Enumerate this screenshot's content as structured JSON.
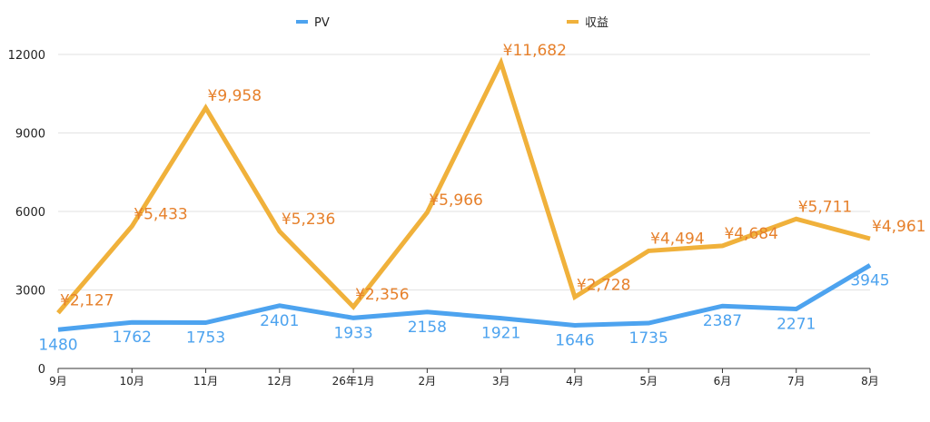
{
  "chart_data": {
    "type": "line",
    "title": "",
    "xlabel": "",
    "ylabel": "",
    "ylim": [
      0,
      12000
    ],
    "yticks": [
      0,
      3000,
      6000,
      9000,
      12000
    ],
    "categories": [
      "9月",
      "10月",
      "11月",
      "12月",
      "26年1月",
      "2月",
      "3月",
      "4月",
      "5月",
      "6月",
      "7月",
      "8月"
    ],
    "grid": "horizontal",
    "legend_position": "top",
    "series": [
      {
        "name": "PV",
        "color": "#4da3ef",
        "label_color": "#4da3ef",
        "values": [
          1480,
          1762,
          1753,
          2401,
          1933,
          2158,
          1921,
          1646,
          1735,
          2387,
          2271,
          3945
        ],
        "labels": [
          "1480",
          "1762",
          "1753",
          "2401",
          "1933",
          "2158",
          "1921",
          "1646",
          "1735",
          "2387",
          "2271",
          "3945"
        ]
      },
      {
        "name": "収益",
        "color": "#f0b13b",
        "label_color": "#e6802b",
        "values": [
          2127,
          5433,
          9958,
          5236,
          2356,
          5966,
          11682,
          2728,
          4494,
          4684,
          5711,
          4961
        ],
        "labels": [
          "¥2,127",
          "¥5,433",
          "¥9,958",
          "¥5,236",
          "¥2,356",
          "¥5,966",
          "¥11,682",
          "¥2,728",
          "¥4,494",
          "¥4,684",
          "¥5,711",
          "¥4,961"
        ]
      }
    ]
  }
}
